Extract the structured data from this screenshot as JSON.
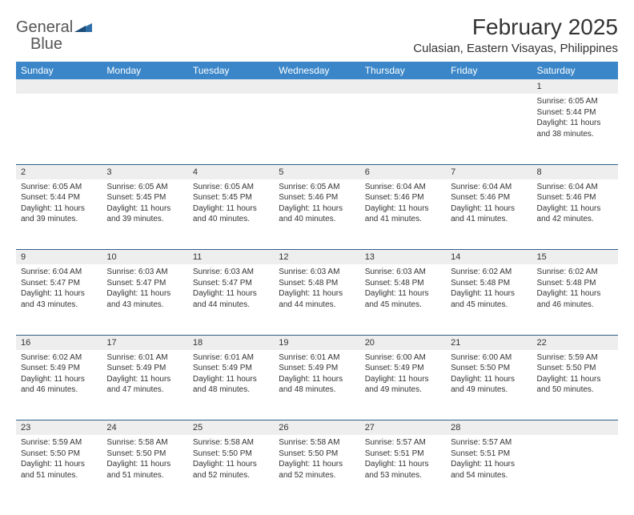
{
  "brand": {
    "name_a": "General",
    "name_b": "Blue"
  },
  "title": "February 2025",
  "location": "Culasian, Eastern Visayas, Philippines",
  "colors": {
    "header_bg": "#3a86c8",
    "header_text": "#ffffff",
    "daynum_bg": "#eeeeee",
    "divider": "#2f5f88",
    "text": "#333333",
    "brand_blue": "#2f6fa8"
  },
  "weekdays": [
    "Sunday",
    "Monday",
    "Tuesday",
    "Wednesday",
    "Thursday",
    "Friday",
    "Saturday"
  ],
  "weeks": [
    [
      null,
      null,
      null,
      null,
      null,
      null,
      {
        "day": "1",
        "sunrise": "Sunrise: 6:05 AM",
        "sunset": "Sunset: 5:44 PM",
        "daylight": "Daylight: 11 hours and 38 minutes."
      }
    ],
    [
      {
        "day": "2",
        "sunrise": "Sunrise: 6:05 AM",
        "sunset": "Sunset: 5:44 PM",
        "daylight": "Daylight: 11 hours and 39 minutes."
      },
      {
        "day": "3",
        "sunrise": "Sunrise: 6:05 AM",
        "sunset": "Sunset: 5:45 PM",
        "daylight": "Daylight: 11 hours and 39 minutes."
      },
      {
        "day": "4",
        "sunrise": "Sunrise: 6:05 AM",
        "sunset": "Sunset: 5:45 PM",
        "daylight": "Daylight: 11 hours and 40 minutes."
      },
      {
        "day": "5",
        "sunrise": "Sunrise: 6:05 AM",
        "sunset": "Sunset: 5:46 PM",
        "daylight": "Daylight: 11 hours and 40 minutes."
      },
      {
        "day": "6",
        "sunrise": "Sunrise: 6:04 AM",
        "sunset": "Sunset: 5:46 PM",
        "daylight": "Daylight: 11 hours and 41 minutes."
      },
      {
        "day": "7",
        "sunrise": "Sunrise: 6:04 AM",
        "sunset": "Sunset: 5:46 PM",
        "daylight": "Daylight: 11 hours and 41 minutes."
      },
      {
        "day": "8",
        "sunrise": "Sunrise: 6:04 AM",
        "sunset": "Sunset: 5:46 PM",
        "daylight": "Daylight: 11 hours and 42 minutes."
      }
    ],
    [
      {
        "day": "9",
        "sunrise": "Sunrise: 6:04 AM",
        "sunset": "Sunset: 5:47 PM",
        "daylight": "Daylight: 11 hours and 43 minutes."
      },
      {
        "day": "10",
        "sunrise": "Sunrise: 6:03 AM",
        "sunset": "Sunset: 5:47 PM",
        "daylight": "Daylight: 11 hours and 43 minutes."
      },
      {
        "day": "11",
        "sunrise": "Sunrise: 6:03 AM",
        "sunset": "Sunset: 5:47 PM",
        "daylight": "Daylight: 11 hours and 44 minutes."
      },
      {
        "day": "12",
        "sunrise": "Sunrise: 6:03 AM",
        "sunset": "Sunset: 5:48 PM",
        "daylight": "Daylight: 11 hours and 44 minutes."
      },
      {
        "day": "13",
        "sunrise": "Sunrise: 6:03 AM",
        "sunset": "Sunset: 5:48 PM",
        "daylight": "Daylight: 11 hours and 45 minutes."
      },
      {
        "day": "14",
        "sunrise": "Sunrise: 6:02 AM",
        "sunset": "Sunset: 5:48 PM",
        "daylight": "Daylight: 11 hours and 45 minutes."
      },
      {
        "day": "15",
        "sunrise": "Sunrise: 6:02 AM",
        "sunset": "Sunset: 5:48 PM",
        "daylight": "Daylight: 11 hours and 46 minutes."
      }
    ],
    [
      {
        "day": "16",
        "sunrise": "Sunrise: 6:02 AM",
        "sunset": "Sunset: 5:49 PM",
        "daylight": "Daylight: 11 hours and 46 minutes."
      },
      {
        "day": "17",
        "sunrise": "Sunrise: 6:01 AM",
        "sunset": "Sunset: 5:49 PM",
        "daylight": "Daylight: 11 hours and 47 minutes."
      },
      {
        "day": "18",
        "sunrise": "Sunrise: 6:01 AM",
        "sunset": "Sunset: 5:49 PM",
        "daylight": "Daylight: 11 hours and 48 minutes."
      },
      {
        "day": "19",
        "sunrise": "Sunrise: 6:01 AM",
        "sunset": "Sunset: 5:49 PM",
        "daylight": "Daylight: 11 hours and 48 minutes."
      },
      {
        "day": "20",
        "sunrise": "Sunrise: 6:00 AM",
        "sunset": "Sunset: 5:49 PM",
        "daylight": "Daylight: 11 hours and 49 minutes."
      },
      {
        "day": "21",
        "sunrise": "Sunrise: 6:00 AM",
        "sunset": "Sunset: 5:50 PM",
        "daylight": "Daylight: 11 hours and 49 minutes."
      },
      {
        "day": "22",
        "sunrise": "Sunrise: 5:59 AM",
        "sunset": "Sunset: 5:50 PM",
        "daylight": "Daylight: 11 hours and 50 minutes."
      }
    ],
    [
      {
        "day": "23",
        "sunrise": "Sunrise: 5:59 AM",
        "sunset": "Sunset: 5:50 PM",
        "daylight": "Daylight: 11 hours and 51 minutes."
      },
      {
        "day": "24",
        "sunrise": "Sunrise: 5:58 AM",
        "sunset": "Sunset: 5:50 PM",
        "daylight": "Daylight: 11 hours and 51 minutes."
      },
      {
        "day": "25",
        "sunrise": "Sunrise: 5:58 AM",
        "sunset": "Sunset: 5:50 PM",
        "daylight": "Daylight: 11 hours and 52 minutes."
      },
      {
        "day": "26",
        "sunrise": "Sunrise: 5:58 AM",
        "sunset": "Sunset: 5:50 PM",
        "daylight": "Daylight: 11 hours and 52 minutes."
      },
      {
        "day": "27",
        "sunrise": "Sunrise: 5:57 AM",
        "sunset": "Sunset: 5:51 PM",
        "daylight": "Daylight: 11 hours and 53 minutes."
      },
      {
        "day": "28",
        "sunrise": "Sunrise: 5:57 AM",
        "sunset": "Sunset: 5:51 PM",
        "daylight": "Daylight: 11 hours and 54 minutes."
      },
      null
    ]
  ]
}
